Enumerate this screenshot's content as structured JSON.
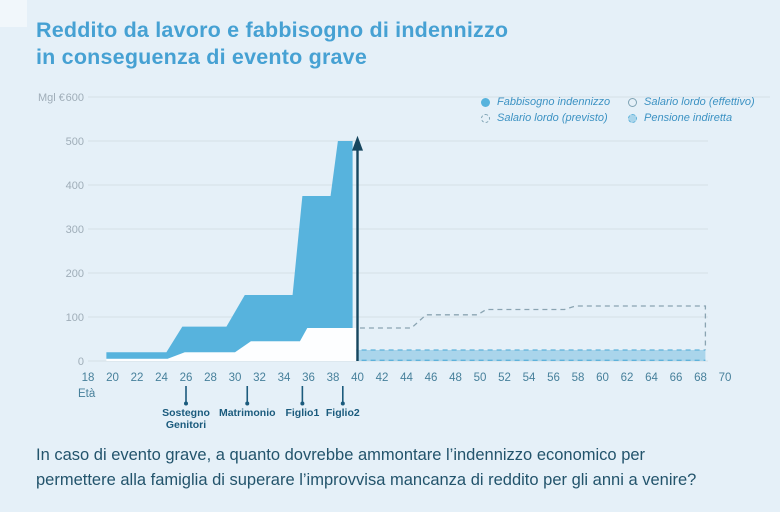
{
  "page": {
    "title": [
      "Reddito da lavoro e fabbisogno di indennizzo",
      "in conseguenza di evento grave"
    ],
    "question": [
      "In caso di evento grave, a quanto dovrebbe ammontare l’indennizzo economico per",
      "permettere alla famiglia di superare l’improvvisa mancanza di reddito per gli anni a venire?"
    ]
  },
  "palette": {
    "background": "#e5f0f8",
    "title": "#46a1d3",
    "grid": "#d5dfe6",
    "axis_line": "#ccd8df",
    "y_tick_text": "#9fadb8",
    "x_tick_text": "#47809b",
    "unit_text": "#9fadb8",
    "event_text": "#1b5b7d",
    "event_line": "#1b5b7d",
    "arrow": "#17465e",
    "legend_text": "#3c92c3",
    "question_text": "#23546c"
  },
  "chart_data": {
    "type": "area",
    "title": "Reddito da lavoro e fabbisogno di indennizzo in conseguenza di evento grave",
    "unit_label": "Mgl €",
    "xlabel": "Età",
    "ylabel": "",
    "x_range": [
      18,
      70
    ],
    "y_range": [
      0,
      600
    ],
    "x_ticks": [
      18,
      20,
      22,
      24,
      26,
      28,
      30,
      32,
      34,
      36,
      38,
      40,
      42,
      44,
      46,
      48,
      50,
      52,
      54,
      56,
      58,
      60,
      62,
      64,
      66,
      68,
      70
    ],
    "y_ticks": [
      600,
      500,
      400,
      300,
      200,
      100,
      0
    ],
    "grid": true,
    "legend_position": "top-right",
    "legend": [
      {
        "label": "Fabbisogno indennizzo",
        "marker": "filled-circle"
      },
      {
        "label": "Salario lordo (effettivo)",
        "marker": "outline-circle"
      },
      {
        "label": "Salario lordo (previsto)",
        "marker": "dashed-circle"
      },
      {
        "label": "Pensione indiretta",
        "marker": "dashed-filled-circle"
      }
    ],
    "series": [
      {
        "name": "Fabbisogno indennizzo",
        "type": "area",
        "color": "#57b3dd",
        "baseline": "Salario lordo (effettivo)",
        "points_age_value": [
          [
            19.5,
            20
          ],
          [
            24.4,
            20
          ],
          [
            25.7,
            78
          ],
          [
            29.3,
            78
          ],
          [
            30.8,
            150
          ],
          [
            34.7,
            150
          ],
          [
            35.5,
            375
          ],
          [
            37.8,
            375
          ],
          [
            38.4,
            500
          ],
          [
            39.6,
            500
          ]
        ]
      },
      {
        "name": "Salario lordo (effettivo)",
        "type": "area",
        "color": "#fdfeff",
        "points_age_value": [
          [
            19.5,
            5
          ],
          [
            24.5,
            5
          ],
          [
            25.9,
            20
          ],
          [
            30.0,
            20
          ],
          [
            31.3,
            45
          ],
          [
            35.3,
            45
          ],
          [
            35.9,
            75
          ],
          [
            39.9,
            75
          ]
        ]
      },
      {
        "name": "Salario lordo (previsto)",
        "type": "dashed-line",
        "color": "#8aa4b2",
        "points_age_value": [
          [
            40.2,
            75
          ],
          [
            44.4,
            75
          ],
          [
            45.6,
            105
          ],
          [
            49.8,
            105
          ],
          [
            50.5,
            117
          ],
          [
            56.9,
            117
          ],
          [
            57.8,
            125
          ],
          [
            68.4,
            125
          ],
          [
            68.4,
            25
          ]
        ]
      },
      {
        "name": "Pensione indiretta",
        "type": "band",
        "color": "#aad5eb",
        "border_color": "#5fb2da",
        "points_age_value": [
          [
            39.6,
            25
          ],
          [
            68.4,
            25
          ]
        ]
      }
    ],
    "annotations": {
      "arrow": {
        "age": 40,
        "from_value": 0,
        "to_value": 500
      },
      "events": [
        {
          "age": 26,
          "label": "Sostegno\nGenitori"
        },
        {
          "age": 31,
          "label": "Matrimonio"
        },
        {
          "age": 35.5,
          "label": "Figlio1"
        },
        {
          "age": 38.8,
          "label": "Figlio2"
        }
      ]
    }
  }
}
